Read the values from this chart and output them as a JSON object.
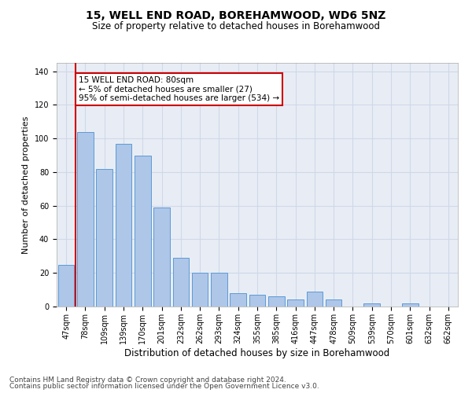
{
  "title1": "15, WELL END ROAD, BOREHAMWOOD, WD6 5NZ",
  "title2": "Size of property relative to detached houses in Borehamwood",
  "xlabel": "Distribution of detached houses by size in Borehamwood",
  "ylabel": "Number of detached properties",
  "categories": [
    "47sqm",
    "78sqm",
    "109sqm",
    "139sqm",
    "170sqm",
    "201sqm",
    "232sqm",
    "262sqm",
    "293sqm",
    "324sqm",
    "355sqm",
    "385sqm",
    "416sqm",
    "447sqm",
    "478sqm",
    "509sqm",
    "539sqm",
    "570sqm",
    "601sqm",
    "632sqm",
    "662sqm"
  ],
  "values": [
    25,
    104,
    82,
    97,
    90,
    59,
    29,
    20,
    20,
    8,
    7,
    6,
    4,
    9,
    4,
    0,
    2,
    0,
    2,
    0,
    0
  ],
  "bar_color": "#aec6e8",
  "bar_edge_color": "#5b9bd5",
  "vline_x_index": 1,
  "vline_color": "#cc0000",
  "annotation_box_text": "15 WELL END ROAD: 80sqm\n← 5% of detached houses are smaller (27)\n95% of semi-detached houses are larger (534) →",
  "annotation_box_color": "#cc0000",
  "annotation_box_fill": "#ffffff",
  "ylim": [
    0,
    145
  ],
  "yticks": [
    0,
    20,
    40,
    60,
    80,
    100,
    120,
    140
  ],
  "grid_color": "#d0d8e8",
  "background_color": "#e8edf5",
  "footer1": "Contains HM Land Registry data © Crown copyright and database right 2024.",
  "footer2": "Contains public sector information licensed under the Open Government Licence v3.0.",
  "title1_fontsize": 10,
  "title2_fontsize": 8.5,
  "xlabel_fontsize": 8.5,
  "ylabel_fontsize": 8,
  "tick_fontsize": 7,
  "footer_fontsize": 6.5,
  "annotation_fontsize": 7.5
}
